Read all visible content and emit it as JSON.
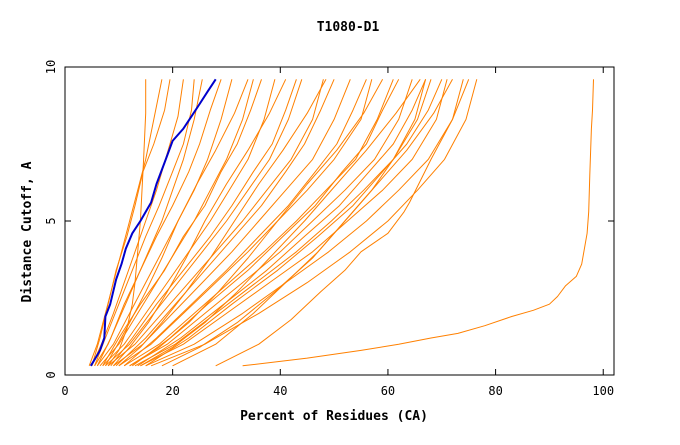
{
  "chart_data": {
    "type": "line",
    "title": "T1080-D1",
    "xlabel": "Percent of Residues (CA)",
    "ylabel": "Distance Cutoff, A",
    "xlim": [
      0,
      102
    ],
    "ylim": [
      0,
      10
    ],
    "xticks": [
      0,
      20,
      40,
      60,
      80,
      100
    ],
    "yticks": [
      0,
      5,
      10
    ],
    "grid": false,
    "legend": "none",
    "colors": {
      "model": "#ff8000",
      "highlight": "#0000cc",
      "axis": "#000000"
    },
    "highlight_series": {
      "x": [
        4.8,
        5.5,
        6.5,
        7.3,
        7.5,
        8.4,
        9.5,
        10.5,
        11.3,
        12.5,
        14.0,
        16.0,
        17.0,
        18.5,
        20.0,
        22.0,
        23.5,
        25.0,
        26.5,
        28.0
      ],
      "y": [
        0.3,
        0.5,
        0.8,
        1.2,
        1.9,
        2.3,
        3.1,
        3.6,
        4.1,
        4.6,
        5.0,
        5.6,
        6.2,
        6.9,
        7.6,
        8.0,
        8.4,
        8.8,
        9.2,
        9.6
      ]
    },
    "series": [
      {
        "x": [
          33,
          45,
          55,
          62,
          68,
          73,
          78,
          83,
          87,
          90,
          91.5,
          93,
          95,
          96,
          96.5,
          97,
          97.3,
          97.5,
          97.8,
          98,
          98.2
        ],
        "y": [
          0.3,
          0.55,
          0.8,
          1.0,
          1.2,
          1.35,
          1.6,
          1.9,
          2.1,
          2.3,
          2.55,
          2.9,
          3.2,
          3.6,
          4.1,
          4.6,
          5.3,
          6.5,
          8.0,
          8.6,
          9.6
        ]
      },
      {
        "x": [
          8.0,
          10.0,
          11.5,
          12.5,
          13.0,
          13.5,
          14.0,
          14.3,
          14.6,
          15.0,
          15.0
        ],
        "y": [
          0.3,
          0.8,
          1.5,
          2.3,
          3.0,
          4.0,
          5.0,
          6.0,
          7.0,
          8.5,
          9.6
        ]
      },
      {
        "x": [
          4.5,
          6.0,
          7.5,
          9.0,
          10.5,
          12.0,
          13.5,
          15.0,
          16.5,
          18.0
        ],
        "y": [
          0.3,
          1.0,
          2.0,
          3.0,
          4.0,
          5.0,
          6.0,
          7.0,
          8.3,
          9.6
        ]
      },
      {
        "x": [
          5.0,
          7.0,
          9.0,
          11.0,
          13.0,
          15.0,
          17.0,
          19.0,
          21.0,
          22.0
        ],
        "y": [
          0.3,
          1.1,
          2.0,
          3.0,
          4.0,
          5.0,
          6.0,
          7.2,
          8.4,
          9.6
        ]
      },
      {
        "x": [
          5.5,
          8.0,
          10.5,
          13.0,
          15.5,
          18.0,
          20.0,
          22.0,
          24.0,
          25.5
        ],
        "y": [
          0.3,
          1.0,
          2.0,
          3.0,
          4.0,
          5.0,
          6.0,
          7.0,
          8.3,
          9.6
        ]
      },
      {
        "x": [
          6.0,
          9.0,
          12.0,
          15.0,
          18.0,
          21.0,
          24.0,
          26.5,
          29.0,
          31.0
        ],
        "y": [
          0.3,
          1.0,
          2.0,
          3.0,
          4.0,
          5.0,
          6.0,
          7.0,
          8.3,
          9.6
        ]
      },
      {
        "x": [
          6.5,
          10.0,
          13.5,
          17.0,
          20.5,
          24.0,
          27.0,
          30.0,
          33.0,
          35.0
        ],
        "y": [
          0.3,
          1.0,
          2.0,
          3.0,
          4.0,
          5.0,
          6.0,
          7.0,
          8.3,
          9.6
        ]
      },
      {
        "x": [
          7.0,
          11.0,
          15.0,
          19.0,
          23.0,
          27.0,
          30.5,
          34.0,
          37.0,
          39.0
        ],
        "y": [
          0.3,
          1.0,
          2.0,
          3.0,
          4.0,
          5.0,
          6.0,
          7.0,
          8.3,
          9.6
        ]
      },
      {
        "x": [
          7.5,
          12.0,
          16.5,
          21.0,
          25.5,
          30.0,
          34.0,
          38.0,
          41.5,
          44.0
        ],
        "y": [
          0.3,
          1.0,
          2.0,
          3.0,
          4.0,
          5.0,
          6.0,
          7.0,
          8.3,
          9.6
        ]
      },
      {
        "x": [
          8.0,
          13.0,
          18.0,
          23.0,
          28.0,
          33.0,
          37.5,
          42.0,
          46.0,
          48.0
        ],
        "y": [
          0.3,
          1.0,
          2.0,
          3.0,
          4.0,
          5.0,
          6.0,
          7.0,
          8.3,
          9.6
        ]
      },
      {
        "x": [
          9.0,
          14.5,
          20.0,
          25.5,
          31.0,
          36.0,
          41.0,
          46.0,
          50.0,
          53.0
        ],
        "y": [
          0.3,
          1.0,
          2.0,
          3.0,
          4.0,
          5.0,
          6.0,
          7.0,
          8.3,
          9.6
        ]
      },
      {
        "x": [
          10.0,
          16.0,
          22.0,
          28.0,
          34.0,
          39.5,
          45.0,
          50.0,
          55.0,
          57.0
        ],
        "y": [
          0.3,
          1.0,
          2.0,
          3.0,
          4.0,
          5.0,
          6.0,
          7.0,
          8.3,
          9.6
        ]
      },
      {
        "x": [
          11.0,
          17.5,
          24.0,
          30.5,
          37.0,
          43.0,
          48.5,
          54.0,
          58.0,
          61.0
        ],
        "y": [
          0.3,
          1.0,
          2.0,
          3.0,
          4.0,
          5.0,
          6.0,
          7.0,
          8.3,
          9.6
        ]
      },
      {
        "x": [
          12.0,
          19.0,
          26.0,
          33.0,
          40.0,
          46.0,
          52.0,
          57.5,
          62.0,
          64.5
        ],
        "y": [
          0.3,
          1.0,
          2.0,
          3.0,
          4.0,
          5.0,
          6.0,
          7.0,
          8.3,
          9.6
        ]
      },
      {
        "x": [
          13.0,
          20.5,
          28.0,
          35.5,
          43.0,
          49.5,
          55.5,
          61.0,
          65.5,
          68.0
        ],
        "y": [
          0.3,
          1.0,
          2.0,
          3.0,
          4.0,
          5.0,
          6.0,
          7.0,
          8.3,
          9.6
        ]
      },
      {
        "x": [
          14.0,
          22.0,
          30.0,
          38.0,
          46.0,
          52.5,
          59.0,
          64.5,
          69.0,
          71.0
        ],
        "y": [
          0.3,
          1.0,
          2.0,
          3.0,
          4.0,
          5.0,
          6.0,
          7.0,
          8.3,
          9.6
        ]
      },
      {
        "x": [
          15.0,
          24.0,
          33.0,
          41.0,
          49.0,
          56.0,
          62.0,
          67.5,
          72.0,
          74.0
        ],
        "y": [
          0.3,
          1.0,
          2.0,
          3.0,
          4.0,
          5.0,
          6.0,
          7.0,
          8.3,
          9.6
        ]
      },
      {
        "x": [
          16.0,
          26.0,
          36.0,
          45.0,
          53.0,
          60.0,
          65.5,
          70.5,
          74.5,
          76.5
        ],
        "y": [
          0.3,
          1.0,
          2.0,
          3.0,
          4.0,
          5.0,
          6.0,
          7.0,
          8.3,
          9.6
        ]
      },
      {
        "x": [
          28.0,
          36.0,
          42.0,
          47.5,
          52.0,
          55.0,
          60.0,
          63.0,
          64.0,
          68.0,
          72.0,
          75.0
        ],
        "y": [
          0.3,
          1.0,
          1.8,
          2.7,
          3.4,
          4.0,
          4.6,
          5.3,
          5.6,
          7.0,
          8.3,
          9.6
        ]
      },
      {
        "x": [
          20.0,
          28.0,
          35.0,
          41.0,
          47.0,
          52.0,
          57.0,
          61.0,
          65.0,
          67.0
        ],
        "y": [
          0.3,
          1.0,
          2.0,
          3.0,
          4.0,
          5.0,
          6.0,
          7.0,
          8.3,
          9.6
        ]
      },
      {
        "x": [
          6.0,
          8.5,
          11.0,
          14.0,
          17.0,
          20.0,
          23.0,
          25.0,
          27.0,
          29.0
        ],
        "y": [
          0.3,
          1.2,
          2.3,
          3.4,
          4.5,
          5.5,
          6.6,
          7.5,
          8.6,
          9.6
        ]
      },
      {
        "x": [
          7.0,
          10.0,
          14.0,
          18.5,
          22.0,
          26.0,
          29.0,
          32.0,
          34.5,
          36.5
        ],
        "y": [
          0.3,
          1.2,
          2.3,
          3.4,
          4.5,
          5.5,
          6.6,
          7.5,
          8.6,
          9.6
        ]
      },
      {
        "x": [
          8.5,
          12.5,
          17.0,
          22.0,
          27.0,
          31.0,
          35.0,
          38.5,
          41.0,
          43.0
        ],
        "y": [
          0.3,
          1.2,
          2.3,
          3.4,
          4.5,
          5.5,
          6.6,
          7.5,
          8.6,
          9.6
        ]
      },
      {
        "x": [
          9.5,
          15.0,
          20.5,
          26.0,
          31.5,
          36.5,
          41.0,
          44.5,
          47.5,
          50.0
        ],
        "y": [
          0.3,
          1.2,
          2.3,
          3.4,
          4.5,
          5.5,
          6.6,
          7.5,
          8.6,
          9.6
        ]
      },
      {
        "x": [
          11.0,
          17.0,
          23.5,
          30.0,
          36.0,
          41.5,
          46.5,
          50.5,
          53.5,
          56.0
        ],
        "y": [
          0.3,
          1.2,
          2.3,
          3.4,
          4.5,
          5.5,
          6.6,
          7.5,
          8.6,
          9.6
        ]
      },
      {
        "x": [
          12.5,
          19.5,
          26.5,
          34.0,
          40.5,
          46.5,
          51.5,
          56.0,
          59.0,
          62.0
        ],
        "y": [
          0.3,
          1.2,
          2.3,
          3.4,
          4.5,
          5.5,
          6.6,
          7.5,
          8.6,
          9.6
        ]
      },
      {
        "x": [
          13.5,
          21.5,
          29.5,
          37.5,
          44.5,
          51.0,
          56.5,
          61.0,
          64.5,
          67.0
        ],
        "y": [
          0.3,
          1.2,
          2.3,
          3.4,
          4.5,
          5.5,
          6.6,
          7.5,
          8.6,
          9.6
        ]
      },
      {
        "x": [
          15.0,
          23.0,
          31.0,
          39.5,
          47.0,
          53.5,
          59.0,
          63.5,
          67.5,
          70.0
        ],
        "y": [
          0.3,
          1.2,
          2.3,
          3.4,
          4.5,
          5.5,
          6.6,
          7.5,
          8.6,
          9.6
        ]
      },
      {
        "x": [
          5.0,
          6.5,
          8.0,
          9.5,
          11.5,
          13.0,
          14.5,
          16.5,
          18.5,
          19.5
        ],
        "y": [
          0.3,
          1.2,
          2.3,
          3.4,
          4.5,
          5.5,
          6.6,
          7.5,
          8.6,
          9.6
        ]
      },
      {
        "x": [
          5.5,
          7.5,
          10.0,
          12.5,
          15.0,
          17.5,
          20.0,
          22.0,
          23.5,
          24.0
        ],
        "y": [
          0.3,
          1.2,
          2.3,
          3.4,
          4.5,
          5.5,
          6.6,
          7.5,
          8.6,
          9.6
        ]
      },
      {
        "x": [
          10.0,
          14.0,
          18.0,
          22.5,
          27.0,
          31.5,
          36.0,
          40.5,
          45.0,
          48.5
        ],
        "y": [
          0.3,
          0.9,
          1.7,
          2.7,
          3.8,
          5.0,
          6.2,
          7.3,
          8.5,
          9.6
        ]
      },
      {
        "x": [
          12.0,
          17.5,
          23.0,
          28.5,
          34.0,
          39.5,
          45.0,
          50.5,
          55.5,
          59.0
        ],
        "y": [
          0.3,
          0.9,
          1.7,
          2.7,
          3.8,
          5.0,
          6.2,
          7.3,
          8.5,
          9.6
        ]
      },
      {
        "x": [
          14.0,
          20.0,
          26.0,
          32.0,
          38.0,
          44.5,
          50.5,
          56.0,
          61.5,
          66.0
        ],
        "y": [
          0.3,
          0.9,
          1.7,
          2.7,
          3.8,
          5.0,
          6.2,
          7.3,
          8.5,
          9.6
        ]
      },
      {
        "x": [
          18.0,
          25.0,
          32.0,
          39.0,
          46.0,
          52.0,
          58.0,
          63.5,
          68.5,
          72.0
        ],
        "y": [
          0.3,
          0.9,
          1.7,
          2.7,
          3.8,
          5.0,
          6.2,
          7.3,
          8.5,
          9.6
        ]
      },
      {
        "x": [
          7.5,
          9.5,
          12.0,
          15.0,
          18.0,
          21.0,
          24.5,
          28.0,
          31.5,
          34.0
        ],
        "y": [
          0.3,
          0.9,
          1.7,
          2.7,
          3.8,
          5.0,
          6.2,
          7.3,
          8.5,
          9.6
        ]
      },
      {
        "x": [
          9.0,
          12.0,
          15.5,
          19.0,
          22.5,
          26.0,
          30.0,
          34.0,
          38.0,
          41.0
        ],
        "y": [
          0.3,
          0.9,
          1.7,
          2.7,
          3.8,
          5.0,
          6.2,
          7.3,
          8.5,
          9.6
        ]
      }
    ]
  }
}
